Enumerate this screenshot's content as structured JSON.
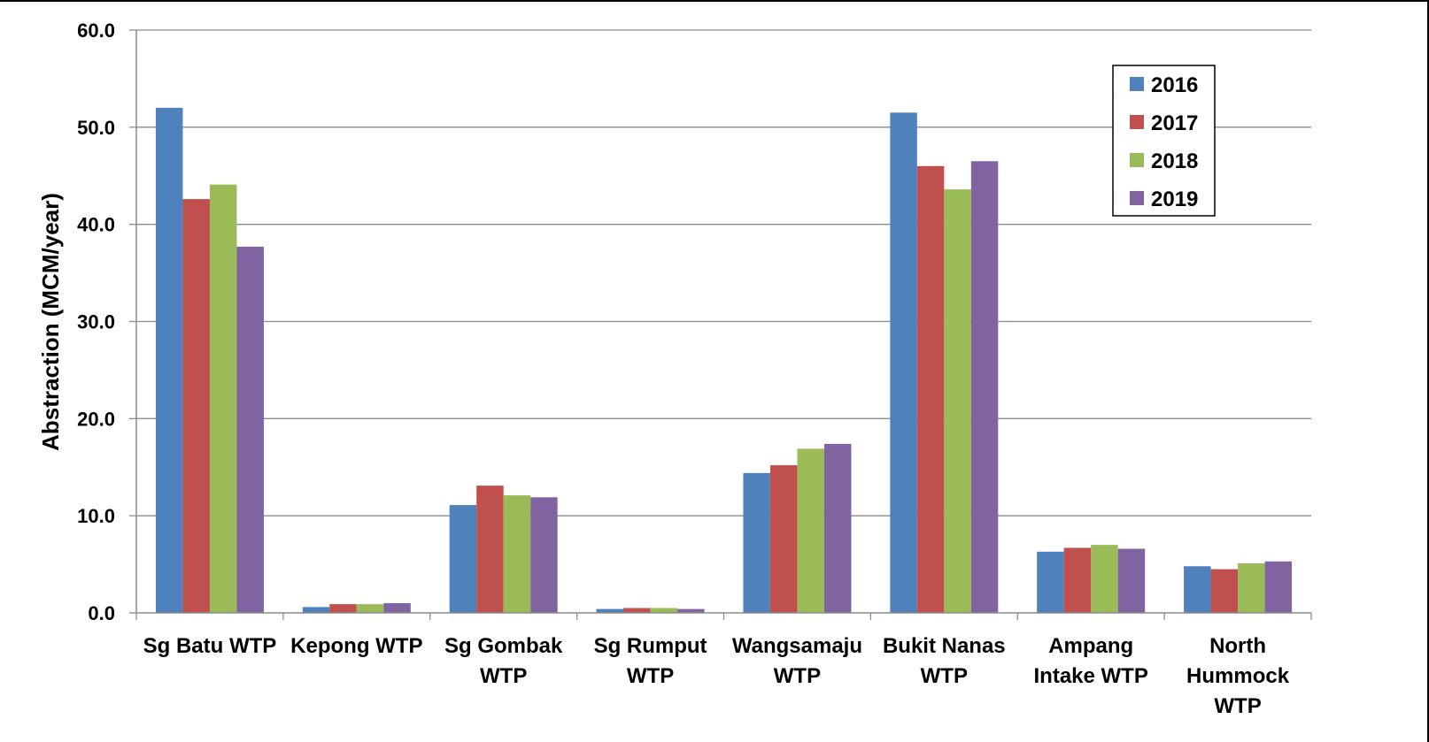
{
  "chart_data": {
    "type": "bar",
    "title": "",
    "xlabel": "",
    "ylabel": "Abstraction (MCM/year)",
    "ylim": [
      0,
      60
    ],
    "yticks": [
      "0.0",
      "10.0",
      "20.0",
      "30.0",
      "40.0",
      "50.0",
      "60.0"
    ],
    "grid": true,
    "legend_position": "top-right",
    "categories": [
      [
        "Sg Batu WTP"
      ],
      [
        "Kepong WTP"
      ],
      [
        "Sg Gombak",
        "WTP"
      ],
      [
        "Sg Rumput",
        "WTP"
      ],
      [
        "Wangsamaju",
        "WTP"
      ],
      [
        "Bukit Nanas",
        "WTP"
      ],
      [
        "Ampang",
        "Intake WTP"
      ],
      [
        "North",
        "Hummock",
        "WTP"
      ]
    ],
    "series": [
      {
        "name": "2016",
        "color": "#4f81bd",
        "values": [
          52.0,
          0.6,
          11.1,
          0.4,
          14.4,
          51.5,
          6.3,
          4.8
        ]
      },
      {
        "name": "2017",
        "color": "#c0504d",
        "values": [
          42.6,
          0.9,
          13.1,
          0.5,
          15.2,
          46.0,
          6.7,
          4.5
        ]
      },
      {
        "name": "2018",
        "color": "#9bbb59",
        "values": [
          44.1,
          0.9,
          12.1,
          0.5,
          16.9,
          43.6,
          7.0,
          5.1
        ]
      },
      {
        "name": "2019",
        "color": "#8064a2",
        "values": [
          37.7,
          1.0,
          11.9,
          0.4,
          17.4,
          46.5,
          6.6,
          5.3
        ]
      }
    ]
  }
}
